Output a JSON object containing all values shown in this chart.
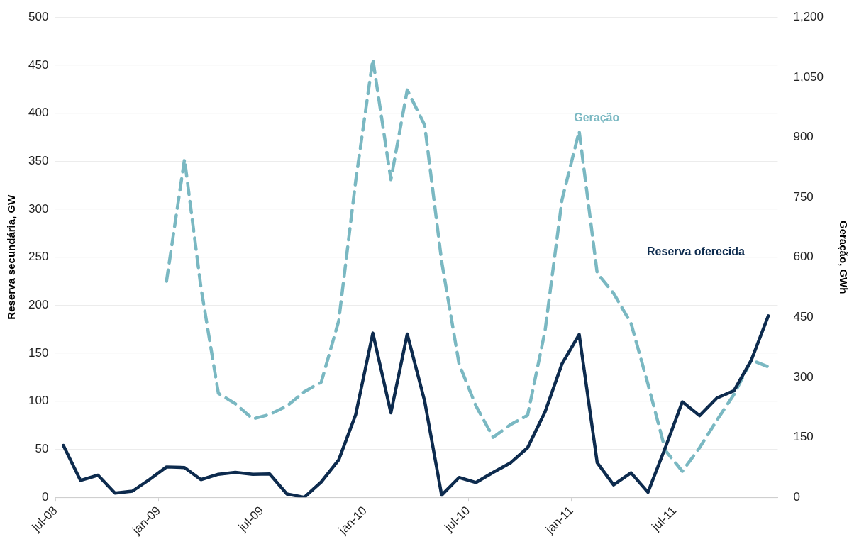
{
  "chart_data": {
    "type": "line",
    "ylabel": "Reserva secundária, GW",
    "y2label": "Geração, GWh",
    "x": [
      "2008-07-15",
      "2008-08-15",
      "2008-09-15",
      "2008-10-15",
      "2008-11-15",
      "2008-12-15",
      "2009-01-15",
      "2009-02-15",
      "2009-03-15",
      "2009-04-15",
      "2009-05-15",
      "2009-06-15",
      "2009-07-15",
      "2009-08-15",
      "2009-09-15",
      "2009-10-15",
      "2009-11-15",
      "2009-12-15",
      "2010-01-15",
      "2010-02-15",
      "2010-03-15",
      "2010-04-15",
      "2010-05-15",
      "2010-06-15",
      "2010-07-15",
      "2010-08-15",
      "2010-09-15",
      "2010-10-15",
      "2010-11-15",
      "2010-12-15",
      "2011-01-15",
      "2011-02-15",
      "2011-03-15",
      "2011-04-15",
      "2011-05-15",
      "2011-06-15",
      "2011-07-15",
      "2011-08-15",
      "2011-09-15",
      "2011-10-15",
      "2011-11-15",
      "2011-12-15"
    ],
    "series": [
      {
        "name": "Reserva oferecida",
        "color": "#0d2b4e",
        "line_style": "solid",
        "values": [
          54,
          17.5,
          23,
          4.4,
          6.4,
          18.4,
          31.6,
          31,
          18.4,
          24,
          26,
          24,
          24.3,
          3.5,
          0,
          16,
          39,
          86,
          171,
          88,
          170,
          100,
          2.3,
          20.6,
          15.4,
          26,
          36,
          51.6,
          89,
          139,
          169.6,
          36,
          13,
          25.5,
          5.2,
          52,
          99.4,
          85,
          103.5,
          111,
          143,
          189
        ]
      },
      {
        "name": "Geração",
        "color": "#7ab8c2",
        "line_style": "dashed",
        "axis": "y2",
        "values": [
          null,
          null,
          null,
          null,
          null,
          null,
          540,
          845,
          525,
          260,
          234,
          196,
          207,
          228,
          264,
          288,
          441,
          790,
          1095,
          794,
          1018,
          930,
          590,
          333,
          228,
          150,
          182,
          205,
          416,
          743,
          915,
          560,
          510,
          435,
          283,
          117,
          65,
          124,
          193,
          257,
          343,
          326
        ]
      }
    ],
    "xlim": [
      "2008-07",
      "2012-01"
    ],
    "xticks": [
      {
        "value": "2008-07",
        "label": "jul-08"
      },
      {
        "value": "2009-01",
        "label": "jan-09"
      },
      {
        "value": "2009-07",
        "label": "jul-09"
      },
      {
        "value": "2010-01",
        "label": "jan-10"
      },
      {
        "value": "2010-07",
        "label": "jul-10"
      },
      {
        "value": "2011-01",
        "label": "jan-11"
      },
      {
        "value": "2011-07",
        "label": "jul-11"
      }
    ],
    "ylim": [
      0,
      500
    ],
    "yticks": [
      0,
      50,
      100,
      150,
      200,
      250,
      300,
      350,
      400,
      450,
      500
    ],
    "y2lim": [
      0,
      1200
    ],
    "y2ticks": [
      0,
      150,
      300,
      450,
      600,
      750,
      900,
      {
        "value": 1050,
        "label": "1,050"
      },
      {
        "value": 1200,
        "label": "1,200"
      }
    ],
    "grid": "y",
    "legend": false,
    "marker": "none"
  }
}
